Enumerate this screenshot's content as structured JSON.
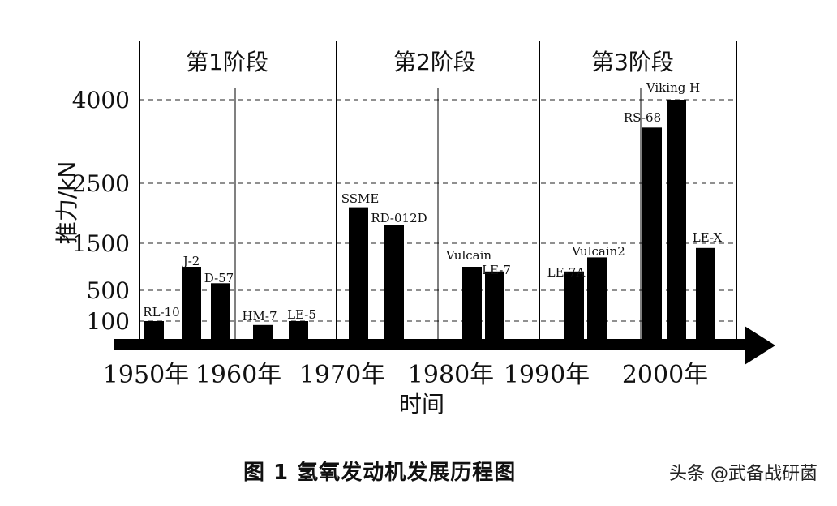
{
  "chart_data": {
    "type": "bar",
    "ylabel": "推力/kN",
    "xlabel": "时间",
    "y_ticks": [
      "4000",
      "2500",
      "1500",
      "500",
      "100"
    ],
    "y_scale": "non-linear (tick values as printed)",
    "grid": "dashed horizontal at y ticks",
    "x_ticks": [
      "1950年",
      "1960年",
      "1970年",
      "1980年",
      "1990年",
      "2000年"
    ],
    "phases": [
      {
        "label": "第1阶段"
      },
      {
        "label": "第2阶段"
      },
      {
        "label": "第3阶段"
      }
    ],
    "bars": [
      {
        "name": "RL-10",
        "value": 100
      },
      {
        "name": "J-2",
        "value": 1000
      },
      {
        "name": "D-57",
        "value": 650
      },
      {
        "name": "HM-7",
        "value": 80
      },
      {
        "name": "LE-5",
        "value": 100
      },
      {
        "name": "SSME",
        "value": 2100
      },
      {
        "name": "RD-012D",
        "value": 1800
      },
      {
        "name": "Vulcain",
        "value": 1000
      },
      {
        "name": "LE-7",
        "value": 900
      },
      {
        "name": "LE-7A",
        "value": 900
      },
      {
        "name": "Vulcain2",
        "value": 1200
      },
      {
        "name": "RS-68",
        "value": 3500
      },
      {
        "name": "Viking H",
        "value": 4000
      },
      {
        "name": "LE-X",
        "value": 1400
      }
    ]
  },
  "caption": {
    "text": "图 1    氢氧发动机发展历程图",
    "watermark": "头条 @武备战研菌"
  }
}
